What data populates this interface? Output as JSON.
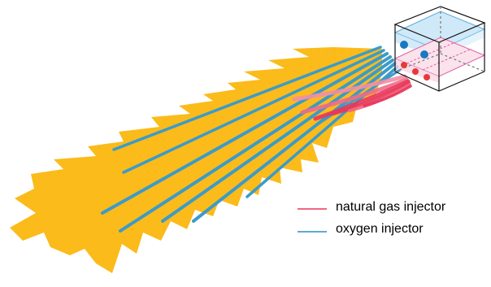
{
  "legend": {
    "items": [
      {
        "label": "natural gas injector",
        "color": "#e8365a"
      },
      {
        "label": "oxygen injector",
        "color": "#2a8ec4"
      }
    ]
  },
  "colors": {
    "flame": "#fbbb1a",
    "flame_dots": "#f4a800",
    "oxygen": "#3b9bc9",
    "gas": "#e8365a",
    "gas_light": "#f28fa5",
    "oxygen_plane": "#cfe9f8",
    "gas_plane": "#fbe3ec",
    "oxygen_injector": "#1a78c2",
    "gas_injector": "#e43a3a"
  },
  "icons": {
    "injector_box": "cube-wireframe-icon",
    "flame": "flame-shape-icon"
  }
}
